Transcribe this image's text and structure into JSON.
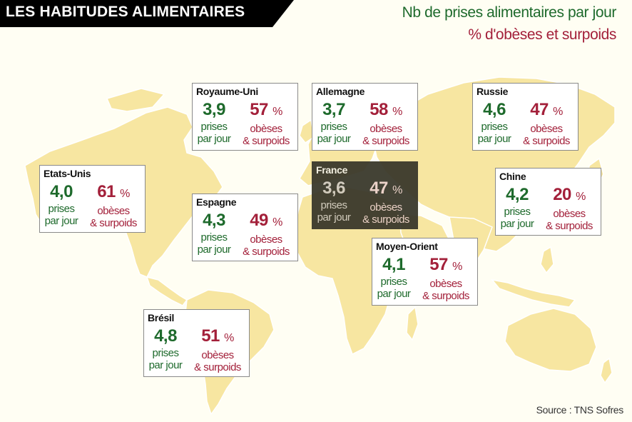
{
  "header": {
    "title": "LES HABITUDES ALIMENTAIRES",
    "legend_intakes": "Nb de prises alimentaires par jour",
    "legend_obesity": "% d'obèses et surpoids"
  },
  "labels": {
    "intake_line1": "prises",
    "intake_line2": "par jour",
    "obese_line1": "obèses",
    "obese_line2": "& surpoids",
    "percent_sign": "%"
  },
  "countries": [
    {
      "name": "Etats-Unis",
      "intakes": "4,0",
      "obese": "61"
    },
    {
      "name": "Royaume-Uni",
      "intakes": "3,9",
      "obese": "57"
    },
    {
      "name": "Allemagne",
      "intakes": "3,7",
      "obese": "58"
    },
    {
      "name": "Russie",
      "intakes": "4,6",
      "obese": "47"
    },
    {
      "name": "France",
      "intakes": "3,6",
      "obese": "47"
    },
    {
      "name": "Espagne",
      "intakes": "4,3",
      "obese": "49"
    },
    {
      "name": "Chine",
      "intakes": "4,2",
      "obese": "20"
    },
    {
      "name": "Moyen-Orient",
      "intakes": "4,1",
      "obese": "57"
    },
    {
      "name": "Brésil",
      "intakes": "4,8",
      "obese": "51"
    }
  ],
  "source": "Source : TNS Sofres",
  "colors": {
    "green": "#1e6a2c",
    "red": "#a3203a",
    "land": "#f7e6a1",
    "background": "#fffef3",
    "banner": "#000000"
  }
}
